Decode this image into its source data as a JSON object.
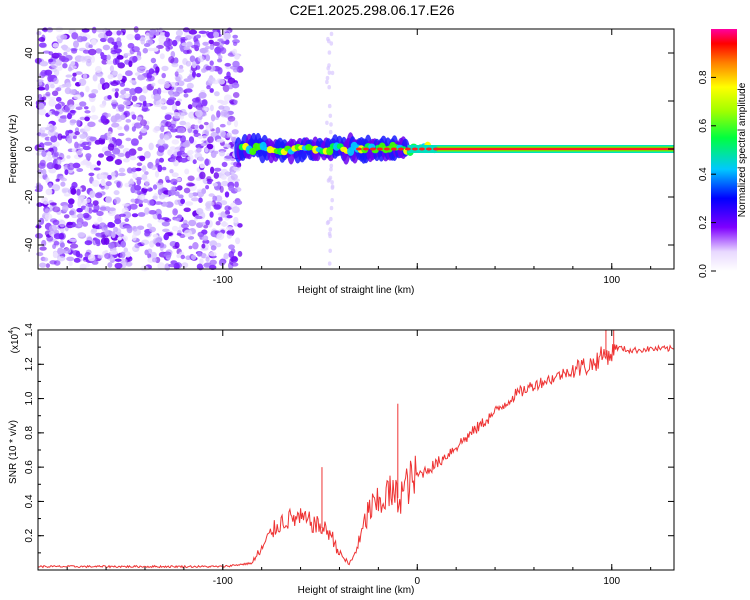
{
  "figure_title": "C2E1.2025.298.06.17.E26",
  "chart_data": [
    {
      "type": "heatmap",
      "title": "C2E1.2025.298.06.17.E26",
      "xlabel": "Height of straight line (km)",
      "ylabel": "Frequency (Hz)",
      "xlim": [
        -195,
        132
      ],
      "ylim": [
        -50,
        50
      ],
      "xticks": [
        -100,
        0,
        100
      ],
      "xtick_labels": [
        "-100",
        "",
        "100"
      ],
      "yticks": [
        -40,
        -20,
        0,
        20,
        40
      ],
      "ytick_labels": [
        "-40",
        "-20",
        "0",
        "20",
        "40"
      ],
      "noise_region_x": [
        -195,
        -88
      ],
      "signal_line_x": [
        -92,
        132
      ],
      "signal_center_hz": 0,
      "colorbar": {
        "label": "Normalized spectral amplitude",
        "range": [
          0,
          1
        ],
        "ticks": [
          0,
          0.2,
          0.4,
          0.6,
          0.8
        ],
        "tick_labels": [
          "0.0",
          "0.2",
          "0.4",
          "0.6",
          "0.8"
        ]
      }
    },
    {
      "type": "line",
      "xlabel": "Height of straight line (km)",
      "ylabel": "SNR (10 * v/v)",
      "scale_label": "(x10",
      "scale_exponent": "4",
      "scale_suffix": ")",
      "xlim": [
        -195,
        132
      ],
      "ylim": [
        0,
        1.4
      ],
      "xticks": [
        -100,
        0,
        100
      ],
      "xtick_labels": [
        "-100",
        "0",
        "100"
      ],
      "yticks": [
        0.2,
        0.4,
        0.6,
        0.8,
        1.0,
        1.2,
        1.4
      ],
      "ytick_labels": [
        "0.2",
        "0.4",
        "0.6",
        "0.8",
        "1.0",
        "1.2",
        "1.4"
      ],
      "series": [
        {
          "name": "SNR",
          "color": "#ee3333",
          "x": [
            -195,
            -150,
            -100,
            -85,
            -80,
            -75,
            -70,
            -65,
            -60,
            -55,
            -50,
            -45,
            -40,
            -35,
            -30,
            -25,
            -20,
            -15,
            -10,
            -5,
            0,
            10,
            20,
            30,
            40,
            50,
            60,
            70,
            80,
            90,
            95,
            100,
            102,
            110,
            120,
            132
          ],
          "y": [
            0.02,
            0.02,
            0.02,
            0.04,
            0.12,
            0.22,
            0.28,
            0.3,
            0.3,
            0.28,
            0.25,
            0.22,
            0.1,
            0.03,
            0.15,
            0.35,
            0.38,
            0.45,
            0.42,
            0.5,
            0.55,
            0.62,
            0.72,
            0.82,
            0.92,
            1.02,
            1.08,
            1.12,
            1.17,
            1.2,
            1.25,
            1.26,
            1.3,
            1.28,
            1.29,
            1.29
          ]
        }
      ],
      "spikes": [
        {
          "x": -10,
          "y": 0.97
        },
        {
          "x": -49,
          "y": 0.6
        },
        {
          "x": 97,
          "y": 1.4
        },
        {
          "x": 101,
          "y": 1.42
        }
      ]
    }
  ]
}
